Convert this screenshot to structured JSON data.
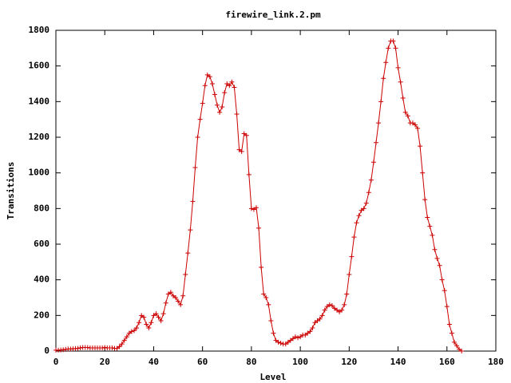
{
  "chart_data": {
    "type": "line",
    "title": "firewire_link.2.pm",
    "x_label": "Level",
    "y_label": "Transitions",
    "x": [
      0,
      1,
      2,
      3,
      4,
      5,
      6,
      7,
      8,
      9,
      10,
      11,
      12,
      13,
      14,
      15,
      16,
      17,
      18,
      19,
      20,
      21,
      22,
      23,
      24,
      25,
      26,
      27,
      28,
      29,
      30,
      31,
      32,
      33,
      34,
      35,
      36,
      37,
      38,
      39,
      40,
      41,
      42,
      43,
      44,
      45,
      46,
      47,
      48,
      49,
      50,
      51,
      52,
      53,
      54,
      55,
      56,
      57,
      58,
      59,
      60,
      61,
      62,
      63,
      64,
      65,
      66,
      67,
      68,
      69,
      70,
      71,
      72,
      73,
      74,
      75,
      76,
      77,
      78,
      79,
      80,
      81,
      82,
      83,
      84,
      85,
      86,
      87,
      88,
      89,
      90,
      91,
      92,
      93,
      94,
      95,
      96,
      97,
      98,
      99,
      100,
      101,
      102,
      103,
      104,
      105,
      106,
      107,
      108,
      109,
      110,
      111,
      112,
      113,
      114,
      115,
      116,
      117,
      118,
      119,
      120,
      121,
      122,
      123,
      124,
      125,
      126,
      127,
      128,
      129,
      130,
      131,
      132,
      133,
      134,
      135,
      136,
      137,
      138,
      139,
      140,
      141,
      142,
      143,
      144,
      145,
      146,
      147,
      148,
      149,
      150,
      151,
      152,
      153,
      154,
      155,
      156,
      157,
      158,
      159,
      160,
      161,
      162,
      163,
      164,
      165,
      166
    ],
    "series": [
      {
        "color": "#cc0000",
        "values": [
          5,
          5,
          6,
          8,
          10,
          12,
          12,
          13,
          14,
          15,
          18,
          20,
          20,
          20,
          18,
          18,
          18,
          18,
          18,
          18,
          20,
          18,
          18,
          18,
          15,
          15,
          25,
          40,
          60,
          80,
          100,
          110,
          115,
          130,
          160,
          200,
          190,
          150,
          130,
          160,
          200,
          210,
          190,
          170,
          210,
          270,
          320,
          330,
          310,
          300,
          280,
          260,
          310,
          430,
          550,
          680,
          840,
          1030,
          1200,
          1300,
          1390,
          1490,
          1550,
          1540,
          1500,
          1440,
          1380,
          1340,
          1370,
          1450,
          1500,
          1490,
          1510,
          1480,
          1330,
          1130,
          1120,
          1220,
          1210,
          990,
          800,
          795,
          805,
          690,
          470,
          320,
          300,
          260,
          170,
          100,
          60,
          50,
          45,
          40,
          40,
          50,
          60,
          70,
          80,
          75,
          80,
          90,
          90,
          100,
          110,
          130,
          160,
          170,
          180,
          200,
          230,
          250,
          260,
          255,
          240,
          230,
          220,
          230,
          260,
          320,
          430,
          530,
          640,
          720,
          760,
          790,
          800,
          830,
          890,
          960,
          1060,
          1170,
          1280,
          1400,
          1530,
          1620,
          1700,
          1740,
          1740,
          1700,
          1590,
          1510,
          1420,
          1340,
          1320,
          1280,
          1280,
          1270,
          1250,
          1150,
          1000,
          850,
          750,
          700,
          650,
          570,
          520,
          480,
          400,
          340,
          250,
          150,
          100,
          50,
          30,
          10,
          0
        ]
      }
    ],
    "xlim": [
      0,
      180
    ],
    "xticks": [
      0,
      20,
      40,
      60,
      80,
      100,
      120,
      140,
      160,
      180
    ],
    "ylim": [
      0,
      1800
    ],
    "yticks": [
      0,
      200,
      400,
      600,
      800,
      1000,
      1200,
      1400,
      1600,
      1800
    ],
    "grid": false
  }
}
